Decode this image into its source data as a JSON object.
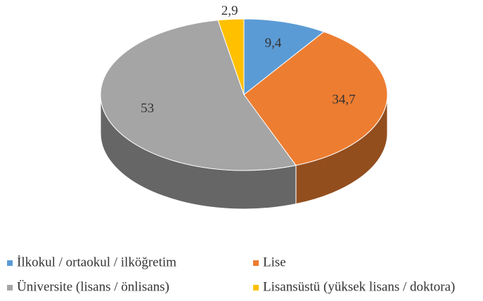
{
  "chart_data": {
    "type": "pie",
    "categories": [
      "İlkokul / ortaokul / ilköğretim",
      "Lise",
      "Üniversite (lisans / önlisans)",
      "Lisansüstü (yüksek lisans / doktora)"
    ],
    "values": [
      9.4,
      34.7,
      53,
      2.9
    ],
    "value_labels": [
      "9,4",
      "34,7",
      "53",
      "2,9"
    ],
    "colors": [
      "#5b9bd5",
      "#ed7d31",
      "#a5a5a5",
      "#ffc000"
    ],
    "legend": "bottom"
  }
}
